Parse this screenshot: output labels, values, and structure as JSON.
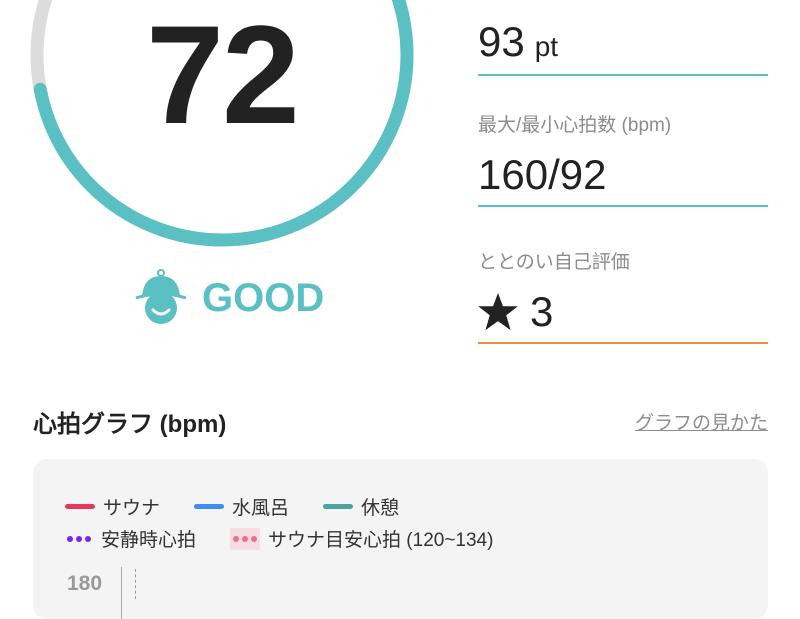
{
  "score": {
    "value": "72",
    "progress_percent": 72,
    "status": "GOOD",
    "status_icon": "bell-hat-face-icon"
  },
  "colors": {
    "accent": "#5bc0c4",
    "track": "#dcdcdc",
    "orange": "#ee8a3a",
    "sauna": "#e8385a",
    "cold_bath": "#3d8ef0",
    "rest": "#4aa39e",
    "resting_hr": "#7a22f0",
    "sauna_target": "#ee6e90"
  },
  "stats": [
    {
      "label": "",
      "value": "93",
      "unit": "pt"
    },
    {
      "label": "最大/最小心拍数 (bpm)",
      "value": "160/92"
    },
    {
      "label": "ととのい自己評価",
      "value": "3",
      "icon": "star-icon"
    }
  ],
  "graph": {
    "title": "心拍グラフ (bpm)",
    "help_link": "グラフの見かた",
    "legend": [
      "サウナ",
      "水風呂",
      "休憩",
      "安静時心拍",
      "サウナ目安心拍 (120~134)"
    ],
    "y_ticks": [
      "180"
    ]
  }
}
